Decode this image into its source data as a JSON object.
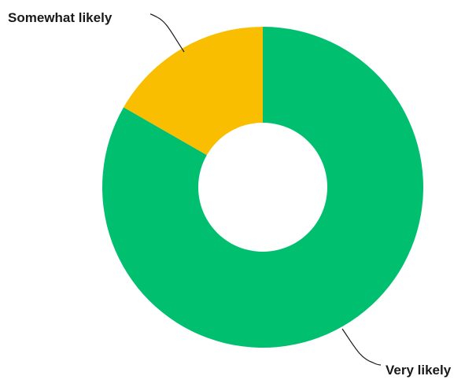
{
  "chart_data": {
    "type": "pie",
    "variant": "donut",
    "title": "",
    "slices": [
      {
        "label": "Very likely",
        "value": 83.3,
        "color": "#00bf6f"
      },
      {
        "label": "Somewhat likely",
        "value": 16.7,
        "color": "#f9be00"
      }
    ],
    "legend": "none",
    "start_angle_deg": 0,
    "direction": "clockwise"
  }
}
